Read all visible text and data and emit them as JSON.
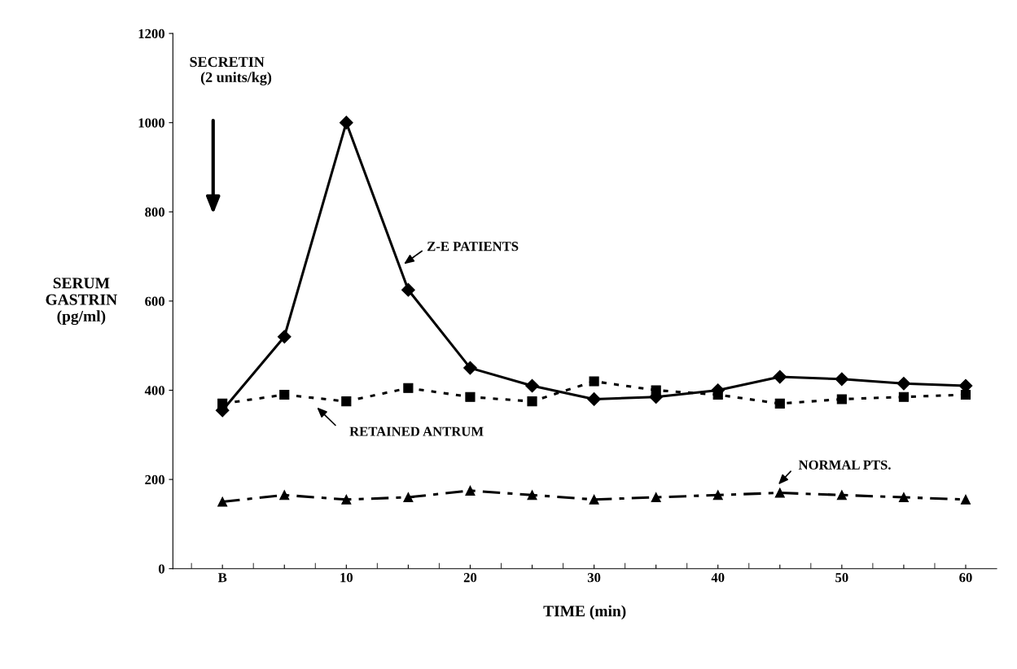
{
  "chart_data": {
    "type": "line",
    "xlabel": "TIME (min)",
    "ylabel": "SERUM\nGASTRIN\n(pg/ml)",
    "categories": [
      "B",
      null,
      "10",
      null,
      "20",
      null,
      "30",
      null,
      "40",
      null,
      "50",
      null,
      "60"
    ],
    "ylim": [
      0,
      1200
    ],
    "yticks": [
      0,
      200,
      400,
      600,
      800,
      1000,
      1200
    ],
    "series": [
      {
        "name": "Z-E PATIENTS",
        "color": "#000000",
        "marker": "diamond",
        "line_style": "solid",
        "values": [
          355,
          520,
          1000,
          625,
          450,
          410,
          380,
          385,
          400,
          430,
          425,
          415,
          410
        ]
      },
      {
        "name": "RETAINED ANTRUM",
        "color": "#000000",
        "marker": "square",
        "line_style": "dotted",
        "values": [
          370,
          390,
          375,
          405,
          385,
          375,
          420,
          400,
          390,
          370,
          380,
          385,
          390
        ]
      },
      {
        "name": "NORMAL PTS.",
        "color": "#000000",
        "marker": "triangle",
        "line_style": "dashed",
        "values": [
          150,
          165,
          155,
          160,
          175,
          165,
          155,
          160,
          165,
          170,
          165,
          160,
          155
        ]
      }
    ],
    "annotations": [
      "SECRETIN\n   (2 units/kg)"
    ],
    "grid": false,
    "legend": false
  }
}
